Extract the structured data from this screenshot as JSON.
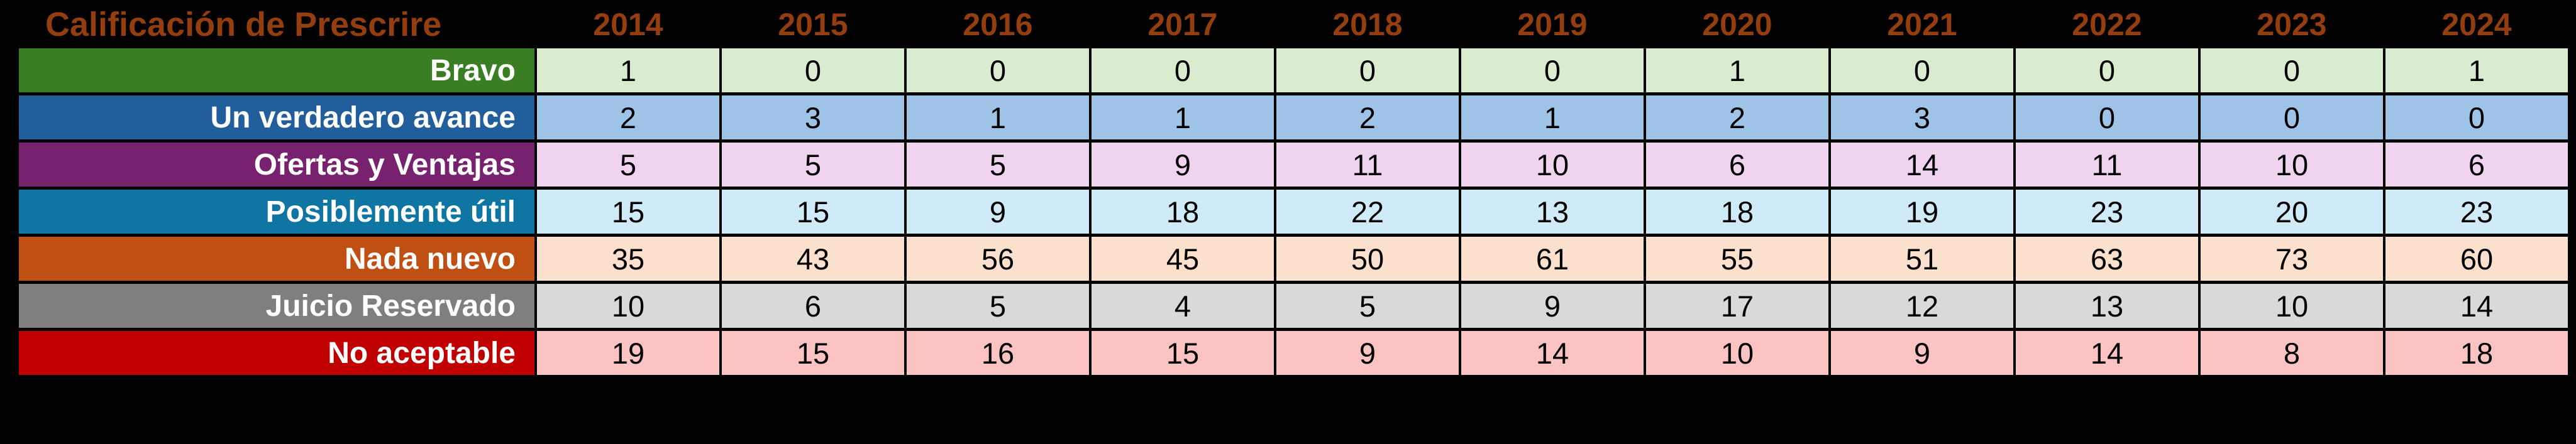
{
  "page": {
    "background": "#000000"
  },
  "table": {
    "title": "Calificación de Prescrire",
    "header_text_color": "#943d0e",
    "border_color": "#000000",
    "years": [
      "2014",
      "2015",
      "2016",
      "2017",
      "2018",
      "2019",
      "2020",
      "2021",
      "2022",
      "2023",
      "2024"
    ],
    "rows": [
      {
        "label": "Bravo",
        "label_bg": "#3b7d23",
        "cell_bg": "#d9ecd0",
        "values": [
          1,
          0,
          0,
          0,
          0,
          0,
          1,
          0,
          0,
          0,
          1
        ]
      },
      {
        "label": "Un verdadero avance",
        "label_bg": "#235e9c",
        "cell_bg": "#9ec3e6",
        "values": [
          2,
          3,
          1,
          1,
          2,
          1,
          2,
          3,
          0,
          0,
          0
        ]
      },
      {
        "label": "Ofertas y Ventajas",
        "label_bg": "#78216e",
        "cell_bg": "#f0d4ef",
        "values": [
          5,
          5,
          5,
          9,
          11,
          10,
          6,
          14,
          11,
          10,
          6
        ]
      },
      {
        "label": "Posiblemente útil",
        "label_bg": "#0f76a3",
        "cell_bg": "#cfebf8",
        "values": [
          15,
          15,
          9,
          18,
          22,
          13,
          18,
          19,
          23,
          20,
          23
        ]
      },
      {
        "label": "Nada nuevo",
        "label_bg": "#c04f13",
        "cell_bg": "#fbe0ce",
        "values": [
          35,
          43,
          56,
          45,
          50,
          61,
          55,
          51,
          63,
          73,
          60
        ]
      },
      {
        "label": "Juicio Reservado",
        "label_bg": "#7f7f7f",
        "cell_bg": "#d9d9d9",
        "values": [
          10,
          6,
          5,
          4,
          5,
          9,
          17,
          12,
          13,
          10,
          14
        ]
      },
      {
        "label": "No aceptable",
        "label_bg": "#c00000",
        "cell_bg": "#fcc3c3",
        "values": [
          19,
          15,
          16,
          15,
          9,
          14,
          10,
          9,
          14,
          8,
          18
        ]
      }
    ]
  },
  "chart_data": {
    "type": "table",
    "title": "Calificación de Prescrire",
    "categories": [
      "2014",
      "2015",
      "2016",
      "2017",
      "2018",
      "2019",
      "2020",
      "2021",
      "2022",
      "2023",
      "2024"
    ],
    "series": [
      {
        "name": "Bravo",
        "values": [
          1,
          0,
          0,
          0,
          0,
          0,
          1,
          0,
          0,
          0,
          1
        ]
      },
      {
        "name": "Un verdadero avance",
        "values": [
          2,
          3,
          1,
          1,
          2,
          1,
          2,
          3,
          0,
          0,
          0
        ]
      },
      {
        "name": "Ofertas y Ventajas",
        "values": [
          5,
          5,
          5,
          9,
          11,
          10,
          6,
          14,
          11,
          10,
          6
        ]
      },
      {
        "name": "Posiblemente útil",
        "values": [
          15,
          15,
          9,
          18,
          22,
          13,
          18,
          19,
          23,
          20,
          23
        ]
      },
      {
        "name": "Nada nuevo",
        "values": [
          35,
          43,
          56,
          45,
          50,
          61,
          55,
          51,
          63,
          73,
          60
        ]
      },
      {
        "name": "Juicio Reservado",
        "values": [
          10,
          6,
          5,
          4,
          5,
          9,
          17,
          12,
          13,
          10,
          14
        ]
      },
      {
        "name": "No aceptable",
        "values": [
          19,
          15,
          16,
          15,
          9,
          14,
          10,
          9,
          14,
          8,
          18
        ]
      }
    ],
    "legend_position": "left-row-labels",
    "grid": true
  }
}
